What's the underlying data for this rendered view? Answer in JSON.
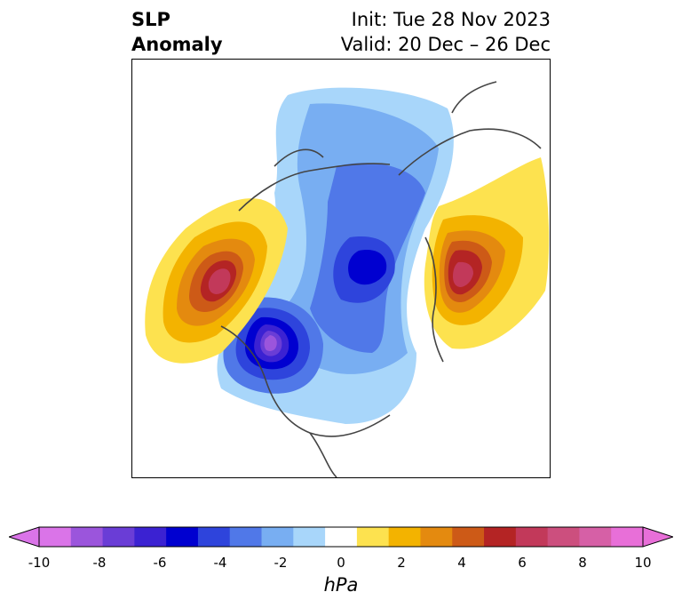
{
  "title": {
    "left_line1": "SLP",
    "left_line2": "Anomaly",
    "right_line1": "Init: Tue 28 Nov 2023",
    "right_line2": "Valid: 20 Dec – 26 Dec"
  },
  "colorbar": {
    "unit": "hPa",
    "ticks": [
      "-10",
      "-8",
      "-6",
      "-4",
      "-2",
      "0",
      "2",
      "4",
      "6",
      "8",
      "10"
    ],
    "colors": [
      "#da74e8",
      "#9b55dc",
      "#6a3dd6",
      "#3b22d2",
      "#0000d0",
      "#2e44dc",
      "#5078e8",
      "#78aef2",
      "#a8d6fa",
      "#ffffff",
      "#fde24f",
      "#f3b300",
      "#e48a0f",
      "#cd5a17",
      "#b42424",
      "#c2395a",
      "#cc4f7e",
      "#d660a6",
      "#e86fd8"
    ],
    "extend_left_color": "#da74e8",
    "extend_right_color": "#e86fd8"
  },
  "map": {
    "projection": "north polar stereographic",
    "variable": "sea level pressure anomaly"
  }
}
